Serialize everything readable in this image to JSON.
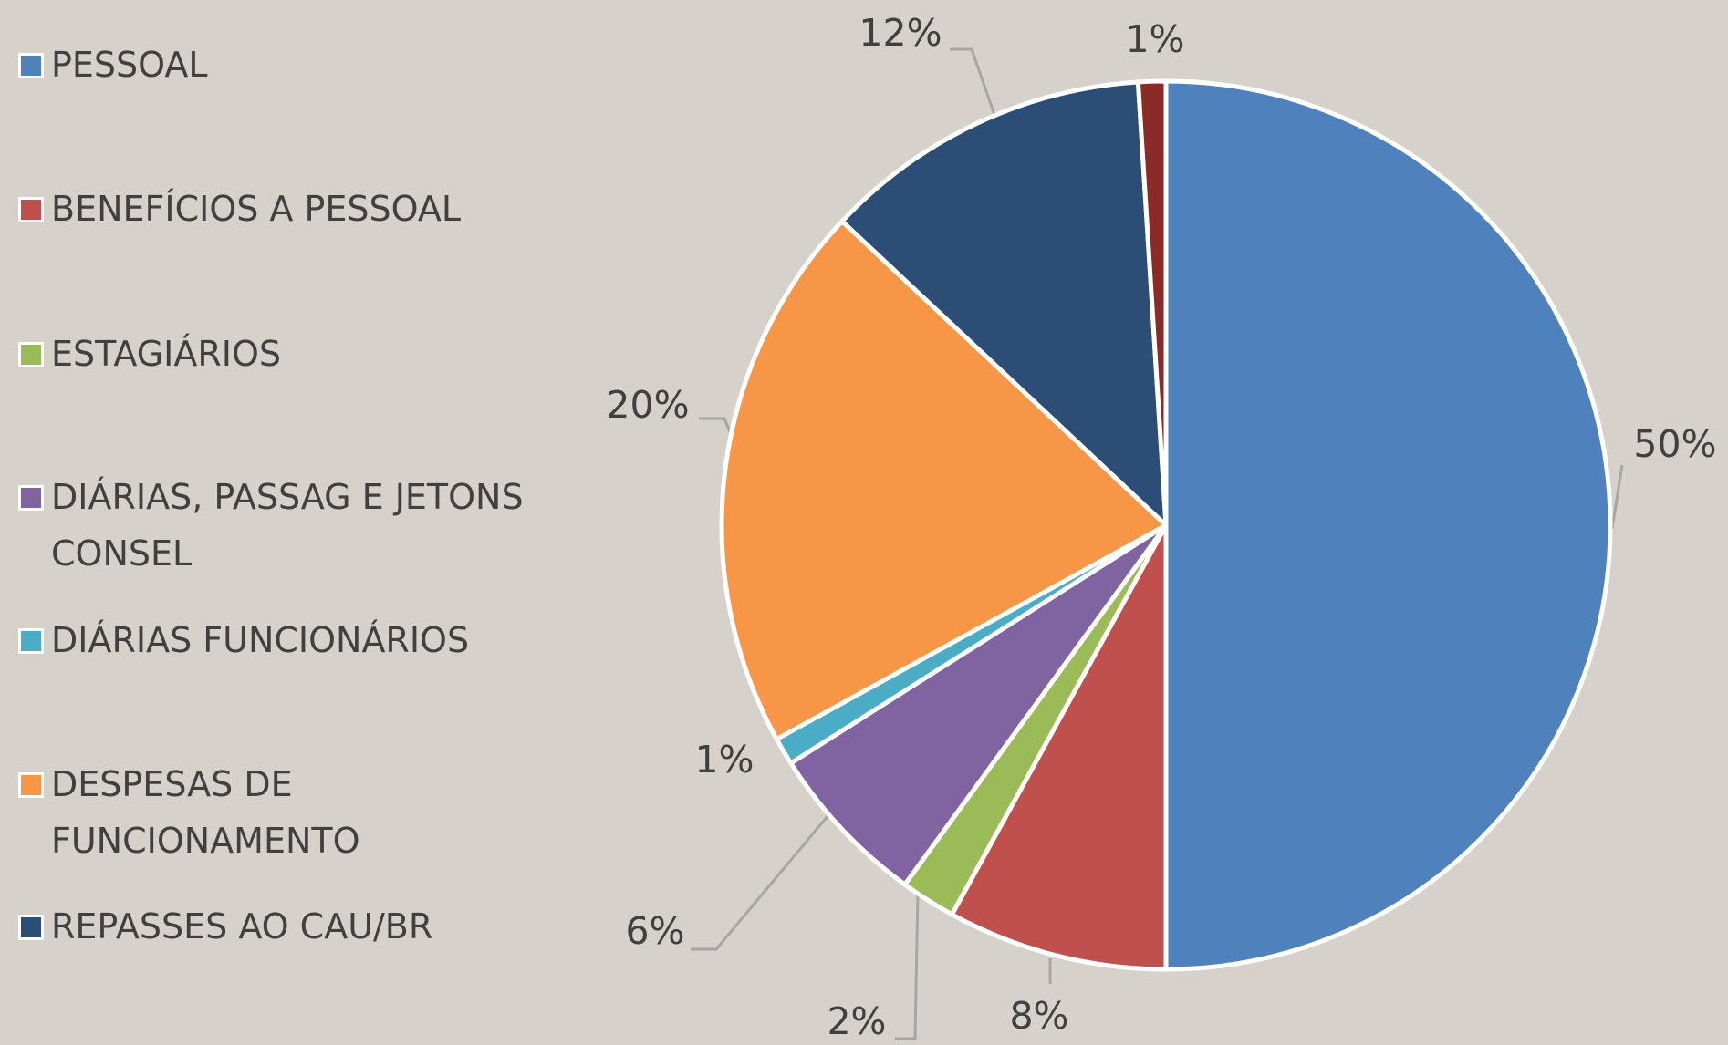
{
  "chart_data": {
    "type": "pie",
    "categories": [
      "PESSOAL",
      "BENEFÍCIOS A PESSOAL",
      "ESTAGIÁRIOS",
      "DIÁRIAS, PASSAG E JETONS CONSEL",
      "DIÁRIAS FUNCIONÁRIOS",
      "DESPESAS DE FUNCIONAMENTO",
      "REPASSES AO CAU/BR",
      null
    ],
    "values": [
      50,
      8,
      2,
      6,
      1,
      20,
      12,
      1
    ],
    "value_labels": [
      "50%",
      "8%",
      "2%",
      "6%",
      "1%",
      "20%",
      "12%",
      "1%"
    ],
    "colors": [
      "#4f81bd",
      "#c0504d",
      "#9bbb59",
      "#8064a2",
      "#4bacc6",
      "#f79646",
      "#2c4d75",
      "#8b2b27"
    ]
  }
}
